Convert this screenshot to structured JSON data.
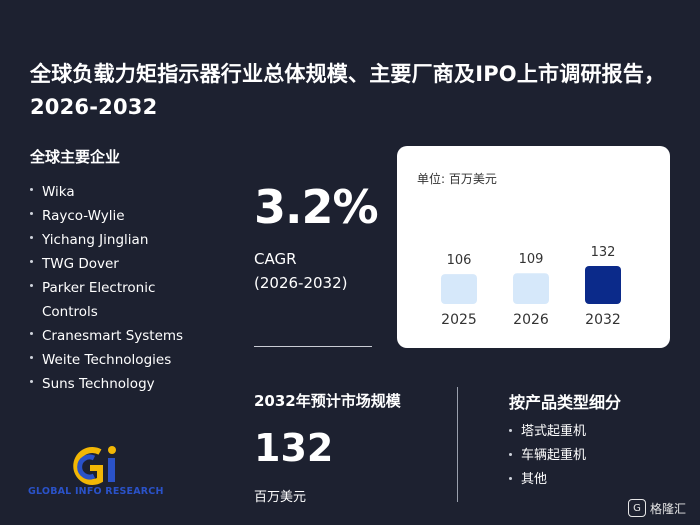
{
  "title": "全球负载力矩指示器行业总体规模、主要厂商及IPO上市调研报告，2026-2032",
  "companies": {
    "heading": "全球主要企业",
    "items": [
      "Wika",
      "Rayco-Wylie",
      "Yichang Jinglian",
      "TWG Dover",
      "Parker Electronic Controls",
      "Cranesmart Systems",
      "Weite Technologies",
      "Suns Technology"
    ]
  },
  "cagr": {
    "value": "3.2%",
    "label": "CAGR",
    "period": "(2026-2032)"
  },
  "chart_data": {
    "type": "bar",
    "unit_label": "单位: 百万美元",
    "categories": [
      "2025",
      "2026",
      "2032"
    ],
    "values": [
      106,
      109,
      132
    ],
    "colors": [
      "#d6e8fa",
      "#d6e8fa",
      "#0b2a8a"
    ]
  },
  "market": {
    "heading": "2032年预计市场规模",
    "value": "132",
    "unit": "百万美元"
  },
  "segments": {
    "heading": "按产品类型细分",
    "items": [
      "塔式起重机",
      "车辆起重机",
      "其他"
    ]
  },
  "logo": {
    "text": "GLOBAL INFO RESEARCH"
  },
  "watermark": {
    "icon": "G",
    "text": "格隆汇"
  }
}
